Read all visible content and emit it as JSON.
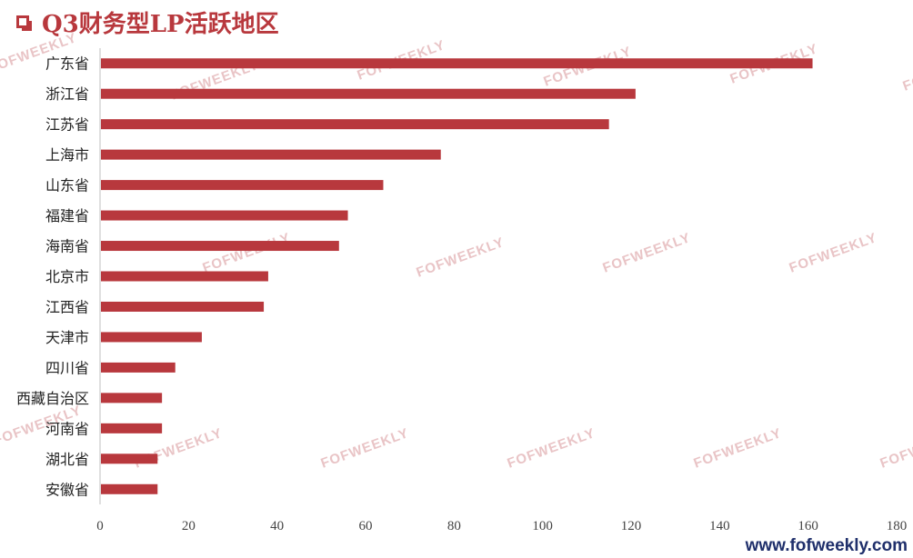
{
  "title": {
    "icon": "square-bullet-icon",
    "text": "Q3财务型LP活跃地区"
  },
  "watermark_text": "FOFWEEKLY",
  "footer": {
    "url": "www.fofweekly.com"
  },
  "colors": {
    "bar": "#b8383d",
    "title": "#b8383d",
    "footer": "#1f2f6b"
  },
  "chart_data": {
    "type": "bar",
    "orientation": "horizontal",
    "title": "Q3财务型LP活跃地区",
    "categories": [
      "广东省",
      "浙江省",
      "江苏省",
      "上海市",
      "山东省",
      "福建省",
      "海南省",
      "北京市",
      "江西省",
      "天津市",
      "四川省",
      "西藏自治区",
      "河南省",
      "湖北省",
      "安徽省"
    ],
    "values": [
      161,
      121,
      115,
      77,
      64,
      56,
      54,
      38,
      37,
      23,
      17,
      14,
      14,
      13,
      13
    ],
    "xlim": [
      0,
      180
    ],
    "xticks": [
      0,
      20,
      40,
      60,
      80,
      100,
      120,
      140,
      160,
      180
    ],
    "xlabel": "",
    "ylabel": "",
    "grid": false,
    "legend": "none"
  }
}
